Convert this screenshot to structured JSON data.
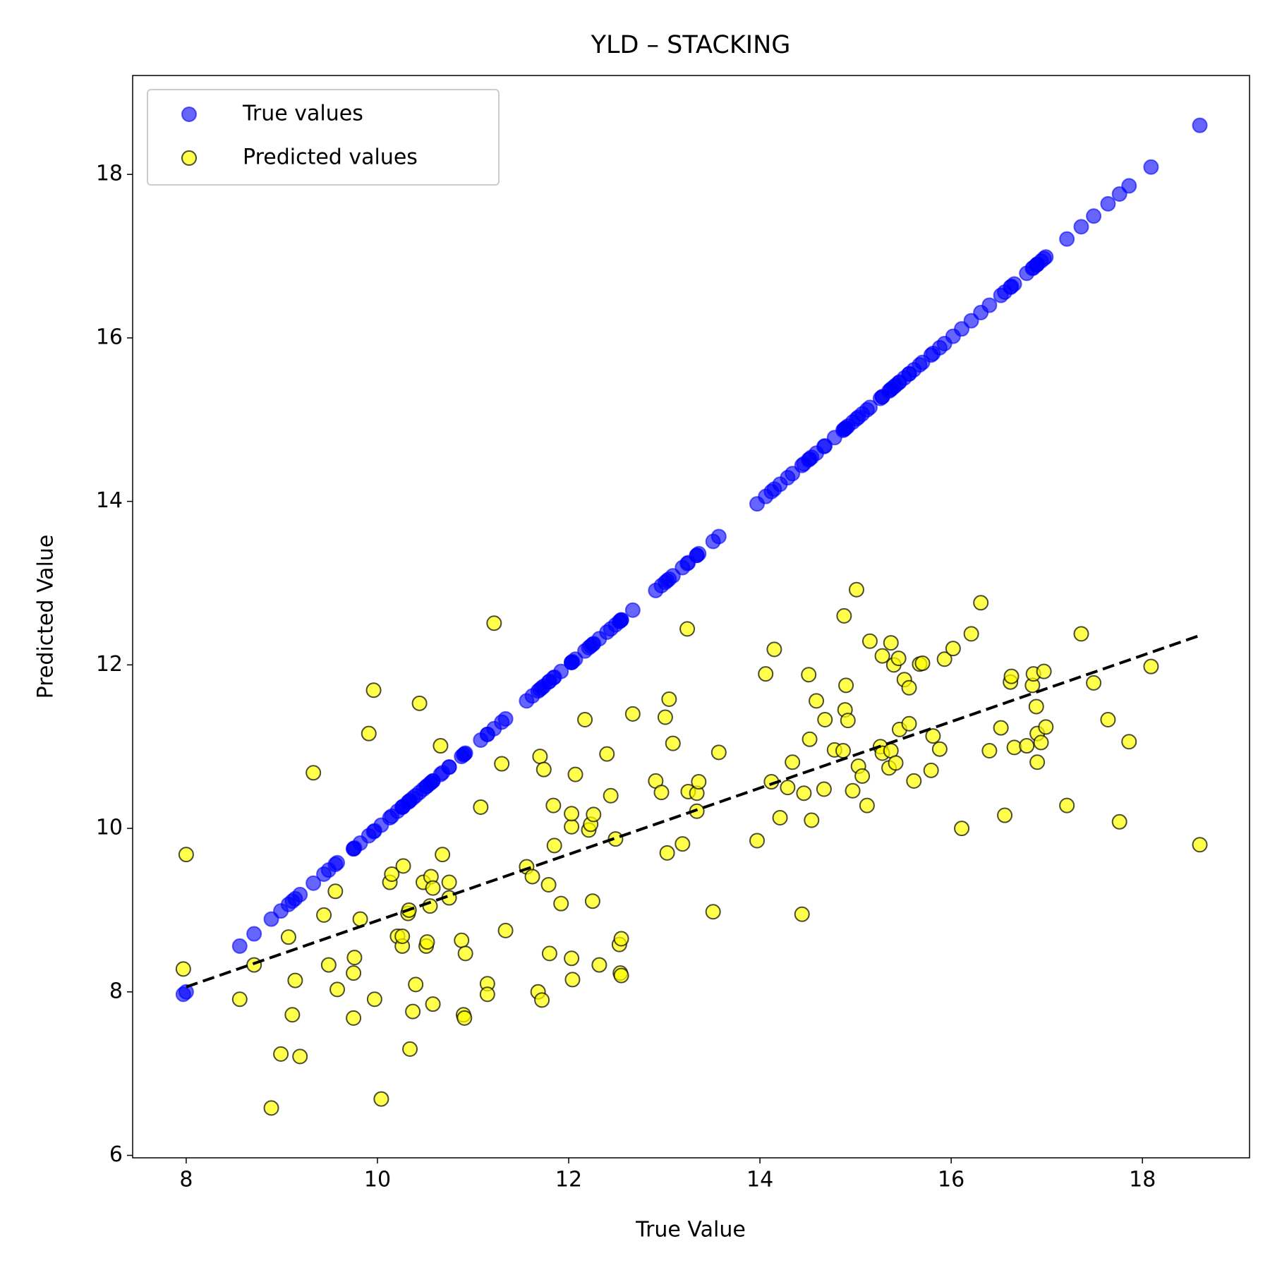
{
  "chart_data": {
    "type": "scatter",
    "title": "YLD – STACKING",
    "x_label": "True Value",
    "y_label": "Predicted Value",
    "x": [
      8.0,
      7.97,
      8.56,
      8.71,
      8.89,
      9.07,
      8.99,
      9.11,
      9.14,
      9.19,
      9.33,
      9.44,
      9.49,
      9.56,
      9.58,
      9.75,
      9.75,
      9.76,
      9.82,
      9.91,
      9.96,
      9.97,
      10.04,
      10.13,
      10.15,
      10.21,
      10.26,
      10.26,
      10.27,
      10.32,
      10.33,
      10.34,
      10.37,
      10.4,
      10.44,
      10.48,
      10.51,
      10.52,
      10.55,
      10.56,
      10.58,
      10.58,
      10.66,
      10.68,
      10.75,
      10.75,
      10.88,
      10.9,
      10.91,
      10.92,
      11.08,
      11.15,
      11.15,
      11.22,
      11.3,
      11.34,
      11.56,
      11.62,
      11.68,
      11.7,
      11.72,
      11.74,
      11.79,
      11.8,
      11.84,
      11.85,
      11.92,
      12.03,
      12.03,
      12.03,
      12.04,
      12.07,
      12.17,
      12.21,
      12.23,
      12.26,
      12.25,
      12.32,
      12.4,
      12.44,
      12.49,
      12.53,
      12.55,
      12.54,
      12.55,
      12.67,
      12.91,
      12.97,
      13.01,
      13.03,
      13.05,
      13.09,
      13.19,
      13.24,
      13.25,
      13.34,
      13.34,
      13.36,
      13.51,
      13.57,
      13.97,
      14.06,
      14.12,
      14.15,
      14.21,
      14.29,
      14.34,
      14.46,
      14.44,
      14.51,
      14.52,
      14.54,
      14.59,
      14.67,
      14.68,
      14.78,
      14.88,
      14.87,
      14.89,
      14.9,
      14.92,
      14.97,
      15.01,
      15.03,
      15.07,
      15.12,
      15.15,
      15.26,
      15.28,
      15.28,
      15.35,
      15.37,
      15.37,
      15.4,
      15.42,
      15.45,
      15.46,
      15.51,
      15.56,
      15.56,
      15.61,
      15.67,
      15.7,
      15.79,
      15.81,
      15.88,
      15.93,
      16.02,
      16.11,
      16.21,
      16.31,
      16.4,
      16.52,
      16.56,
      16.62,
      16.63,
      16.66,
      16.79,
      16.85,
      16.86,
      16.89,
      16.9,
      16.9,
      16.94,
      16.97,
      16.99,
      17.21,
      17.36,
      17.49,
      17.64,
      17.76,
      17.86,
      18.09,
      18.6
    ],
    "series": [
      {
        "name": "True values",
        "color": "blue",
        "opacity": 0.6,
        "edgecolor": "blue",
        "values": [
          8.0,
          7.97,
          8.56,
          8.71,
          8.89,
          9.07,
          8.99,
          9.11,
          9.14,
          9.19,
          9.33,
          9.44,
          9.49,
          9.56,
          9.58,
          9.75,
          9.75,
          9.76,
          9.82,
          9.91,
          9.96,
          9.97,
          10.04,
          10.13,
          10.15,
          10.21,
          10.26,
          10.26,
          10.27,
          10.32,
          10.33,
          10.34,
          10.37,
          10.4,
          10.44,
          10.48,
          10.51,
          10.52,
          10.55,
          10.56,
          10.58,
          10.58,
          10.66,
          10.68,
          10.75,
          10.75,
          10.88,
          10.9,
          10.91,
          10.92,
          11.08,
          11.15,
          11.15,
          11.22,
          11.3,
          11.34,
          11.56,
          11.62,
          11.68,
          11.7,
          11.72,
          11.74,
          11.79,
          11.8,
          11.84,
          11.85,
          11.92,
          12.03,
          12.03,
          12.03,
          12.04,
          12.07,
          12.17,
          12.21,
          12.23,
          12.26,
          12.25,
          12.32,
          12.4,
          12.44,
          12.49,
          12.53,
          12.55,
          12.54,
          12.55,
          12.67,
          12.91,
          12.97,
          13.01,
          13.03,
          13.05,
          13.09,
          13.19,
          13.24,
          13.25,
          13.34,
          13.34,
          13.36,
          13.51,
          13.57,
          13.97,
          14.06,
          14.12,
          14.15,
          14.21,
          14.29,
          14.34,
          14.46,
          14.44,
          14.51,
          14.52,
          14.54,
          14.59,
          14.67,
          14.68,
          14.78,
          14.88,
          14.87,
          14.89,
          14.9,
          14.92,
          14.97,
          15.01,
          15.03,
          15.07,
          15.12,
          15.15,
          15.26,
          15.28,
          15.28,
          15.35,
          15.37,
          15.37,
          15.4,
          15.42,
          15.45,
          15.46,
          15.51,
          15.56,
          15.56,
          15.61,
          15.67,
          15.7,
          15.79,
          15.81,
          15.88,
          15.93,
          16.02,
          16.11,
          16.21,
          16.31,
          16.4,
          16.52,
          16.56,
          16.62,
          16.63,
          16.66,
          16.79,
          16.85,
          16.86,
          16.89,
          16.9,
          16.9,
          16.94,
          16.97,
          16.99,
          17.21,
          17.36,
          17.49,
          17.64,
          17.76,
          17.86,
          18.09,
          18.6
        ]
      },
      {
        "name": "Predicted values",
        "color": "yellow",
        "opacity": 0.7,
        "edgecolor": "black",
        "values": [
          9.68,
          8.28,
          7.91,
          8.33,
          6.58,
          8.67,
          7.24,
          7.72,
          8.14,
          7.21,
          10.68,
          8.94,
          8.33,
          9.23,
          8.03,
          7.68,
          8.23,
          8.42,
          8.89,
          11.16,
          11.69,
          7.91,
          6.69,
          9.34,
          9.44,
          8.68,
          8.56,
          8.68,
          9.54,
          8.96,
          9.0,
          7.3,
          7.76,
          8.09,
          11.53,
          9.34,
          8.56,
          8.61,
          9.05,
          9.41,
          9.27,
          7.85,
          11.01,
          9.68,
          9.34,
          9.15,
          8.63,
          7.72,
          7.68,
          8.47,
          10.26,
          8.1,
          7.97,
          12.51,
          10.79,
          8.75,
          9.53,
          9.41,
          8.0,
          10.88,
          7.9,
          10.72,
          9.31,
          8.47,
          10.28,
          9.79,
          9.08,
          8.41,
          10.02,
          10.18,
          8.15,
          10.66,
          11.33,
          9.98,
          10.05,
          10.17,
          9.11,
          8.33,
          10.91,
          10.4,
          9.87,
          8.58,
          8.65,
          8.23,
          8.2,
          11.4,
          10.58,
          10.44,
          11.36,
          9.7,
          11.58,
          11.04,
          9.81,
          12.44,
          10.45,
          10.43,
          10.21,
          10.57,
          8.98,
          10.93,
          9.85,
          11.89,
          10.57,
          12.19,
          10.13,
          10.5,
          10.81,
          10.43,
          8.95,
          11.88,
          11.09,
          10.1,
          11.56,
          10.48,
          11.33,
          10.96,
          12.6,
          10.95,
          11.45,
          11.75,
          11.32,
          10.46,
          12.92,
          10.76,
          10.64,
          10.28,
          12.29,
          11.0,
          12.11,
          10.92,
          10.74,
          12.27,
          10.95,
          12.0,
          10.8,
          12.08,
          11.21,
          11.82,
          11.72,
          11.28,
          10.58,
          12.01,
          12.02,
          10.71,
          11.13,
          10.97,
          12.07,
          12.2,
          10.0,
          12.38,
          12.76,
          10.95,
          11.23,
          10.16,
          11.79,
          11.86,
          10.99,
          11.01,
          11.75,
          11.89,
          11.49,
          10.81,
          11.16,
          11.05,
          11.92,
          11.24,
          10.28,
          12.38,
          11.78,
          11.33,
          10.08,
          11.06,
          11.98,
          9.8
        ]
      }
    ],
    "fit_line": {
      "x": [
        8.0,
        18.6
      ],
      "values": [
        8.06,
        12.36
      ],
      "color": "black",
      "style": "dashed"
    },
    "xlim": [
      7.44,
      19.12
    ],
    "ylim": [
      5.97,
      19.21
    ],
    "xticks": [
      8,
      10,
      12,
      14,
      16,
      18
    ],
    "yticks": [
      6,
      8,
      10,
      12,
      14,
      16,
      18
    ],
    "grid": false,
    "legend": "upper left"
  }
}
